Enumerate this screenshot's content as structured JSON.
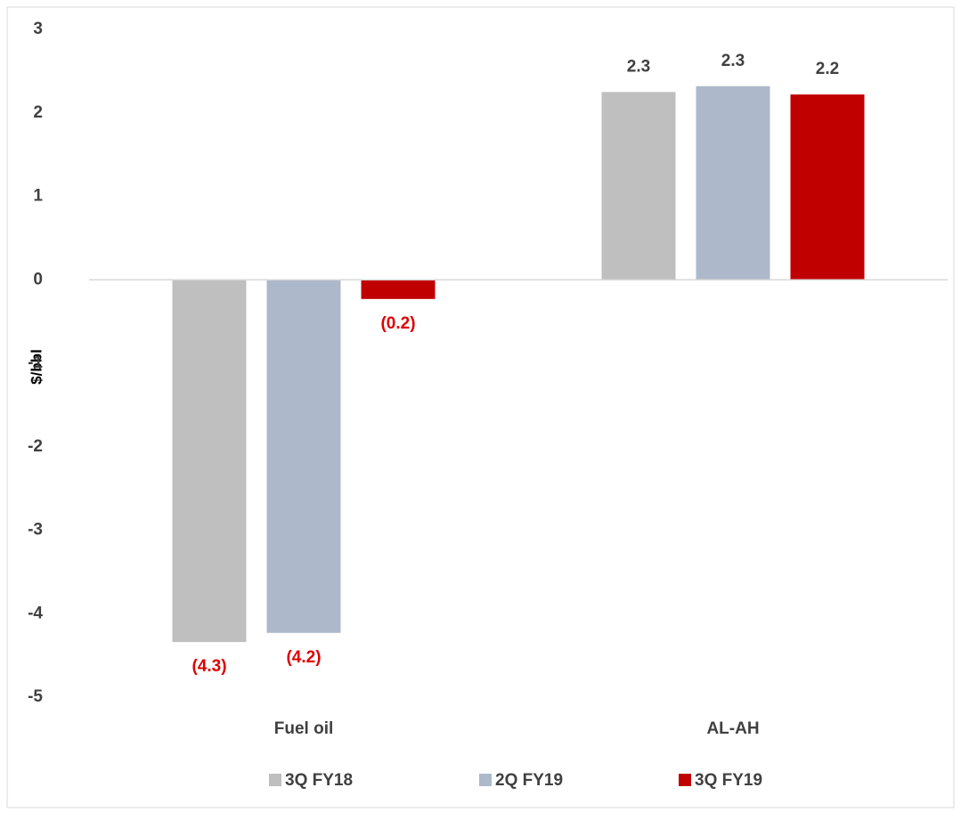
{
  "chart_data": {
    "type": "bar",
    "y_label": "$/bbl",
    "categories": [
      "Fuel oil",
      "AL-AH"
    ],
    "series": [
      {
        "name": "3Q FY18",
        "color": "#bfbfbf",
        "values": [
          -4.34,
          2.25
        ],
        "value_labels": [
          "(4.3)",
          "2.3"
        ]
      },
      {
        "name": "2Q FY19",
        "color": "#adb9ca",
        "values": [
          -4.23,
          2.32
        ],
        "value_labels": [
          "(4.2)",
          "2.3"
        ]
      },
      {
        "name": "3Q FY19",
        "color": "#c00000",
        "values": [
          -0.23,
          2.22
        ],
        "value_labels": [
          "(0.2)",
          "2.2"
        ]
      }
    ],
    "ylim": [
      -5,
      3
    ],
    "yticks": [
      3,
      2,
      1,
      0,
      -1,
      -2,
      -3,
      -4,
      -5
    ],
    "grid": false,
    "legend": "bottom"
  }
}
